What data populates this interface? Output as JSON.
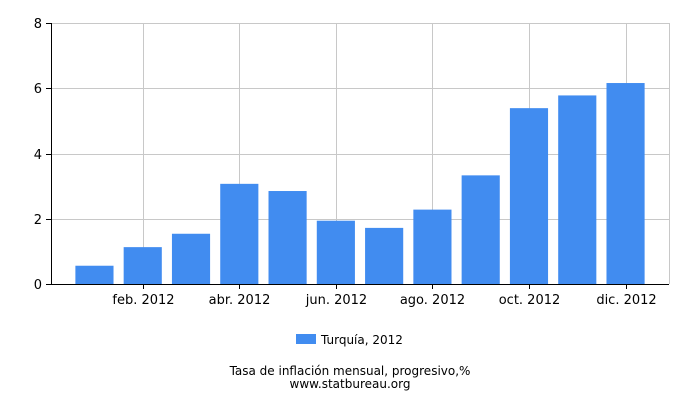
{
  "chart_data": {
    "type": "bar",
    "categories": [
      "ene. 2012",
      "feb. 2012",
      "mar. 2012",
      "abr. 2012",
      "may. 2012",
      "jun. 2012",
      "jul. 2012",
      "ago. 2012",
      "sep. 2012",
      "oct. 2012",
      "nov. 2012",
      "dic. 2012"
    ],
    "x_tick_labels": [
      "feb. 2012",
      "abr. 2012",
      "jun. 2012",
      "ago. 2012",
      "oct. 2012",
      "dic. 2012"
    ],
    "series": [
      {
        "name": "Turquía, 2012",
        "color": "#418cf0",
        "values": [
          0.56,
          1.13,
          1.54,
          3.07,
          2.85,
          1.94,
          1.72,
          2.28,
          3.33,
          5.39,
          5.78,
          6.16
        ]
      }
    ],
    "ylim": [
      0,
      8
    ],
    "yticks": [
      0,
      2,
      4,
      6,
      8
    ],
    "grid": true,
    "legend_position": "bottom-center",
    "title": "Tasa de inflación mensual, progresivo,%",
    "source": "www.statbureau.org"
  }
}
